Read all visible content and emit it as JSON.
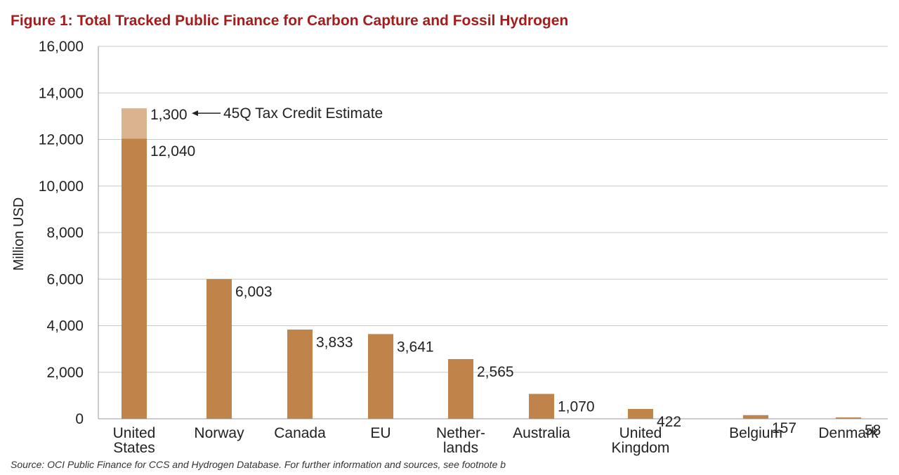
{
  "title": "Figure 1: Total Tracked Public Finance for Carbon Capture and Fossil Hydrogen",
  "source": "Source: OCI Public Finance for CCS and Hydrogen Database. For further information and sources, see footnote b",
  "chart_data": {
    "type": "bar",
    "stacked": true,
    "ylabel": "Million USD",
    "ylim": [
      0,
      16000
    ],
    "yticks": [
      0,
      2000,
      4000,
      6000,
      8000,
      10000,
      12000,
      14000,
      16000
    ],
    "ytick_labels": [
      "0",
      "2,000",
      "4,000",
      "6,000",
      "8,000",
      "10,000",
      "12,000",
      "14,000",
      "16,000"
    ],
    "grid": true,
    "categories": [
      [
        "United",
        "States"
      ],
      [
        "Norway"
      ],
      [
        "Canada"
      ],
      [
        "EU"
      ],
      [
        "Nether-",
        "lands"
      ],
      [
        "Australia"
      ],
      [
        "United",
        "Kingdom"
      ],
      [
        "Belgium"
      ],
      [
        "Denmark"
      ]
    ],
    "series": [
      {
        "values": [
          12040,
          6003,
          3833,
          3641,
          2565,
          1070,
          422,
          157,
          58
        ],
        "labels": [
          "12,040",
          "6,003",
          "3,833",
          "3,641",
          "2,565",
          "1,070",
          "422",
          "157",
          "58"
        ],
        "color": "#c0834a"
      },
      {
        "values": [
          1300,
          0,
          0,
          0,
          0,
          0,
          0,
          0,
          0
        ],
        "labels": [
          "1,300",
          "",
          "",
          "",
          "",
          "",
          "",
          "",
          ""
        ],
        "color": "#d9b48f"
      }
    ],
    "annotation": {
      "text": "45Q Tax Credit Estimate",
      "category_index": 0
    }
  }
}
